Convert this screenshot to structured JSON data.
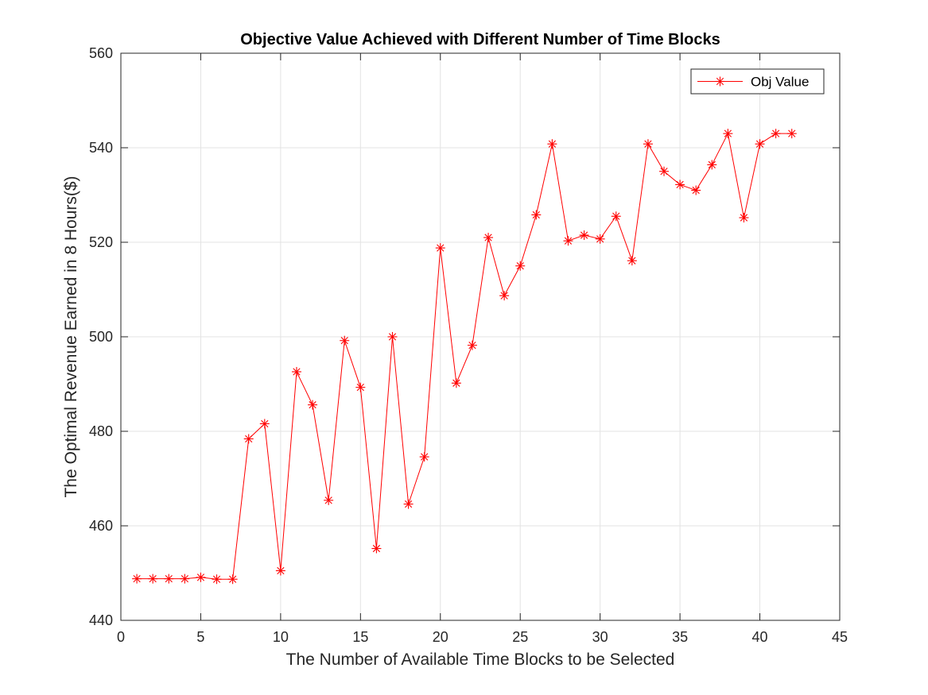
{
  "chart_data": {
    "type": "line",
    "title": "Objective Value Achieved with Different Number of Time Blocks",
    "xlabel": "The Number of Available Time Blocks to be Selected",
    "ylabel": "The Optimal Revenue Earned in 8 Hours($)",
    "xlim": [
      0,
      45
    ],
    "ylim": [
      440,
      560
    ],
    "xticks": [
      0,
      5,
      10,
      15,
      20,
      25,
      30,
      35,
      40,
      45
    ],
    "yticks": [
      440,
      460,
      480,
      500,
      520,
      540,
      560
    ],
    "grid": true,
    "legend_position": "top-right",
    "series": [
      {
        "name": "Obj Value",
        "color": "#ff0000",
        "marker": "asterisk",
        "x": [
          1,
          2,
          3,
          4,
          5,
          6,
          7,
          8,
          9,
          10,
          11,
          12,
          13,
          14,
          15,
          16,
          17,
          18,
          19,
          20,
          21,
          22,
          23,
          24,
          25,
          26,
          27,
          28,
          29,
          30,
          31,
          32,
          33,
          34,
          35,
          36,
          37,
          38,
          39,
          40,
          41,
          42
        ],
        "y": [
          448.8,
          448.8,
          448.8,
          448.8,
          449.1,
          448.7,
          448.7,
          478.4,
          481.6,
          450.5,
          492.6,
          485.6,
          465.4,
          499.2,
          489.3,
          455.2,
          500.0,
          464.6,
          474.6,
          518.8,
          490.2,
          498.2,
          521.0,
          508.7,
          515.0,
          525.8,
          540.8,
          520.3,
          521.5,
          520.7,
          525.5,
          516.1,
          540.8,
          535.0,
          532.2,
          531.0,
          536.4,
          543.0,
          525.2,
          540.8,
          543.0,
          543.0
        ]
      }
    ]
  }
}
